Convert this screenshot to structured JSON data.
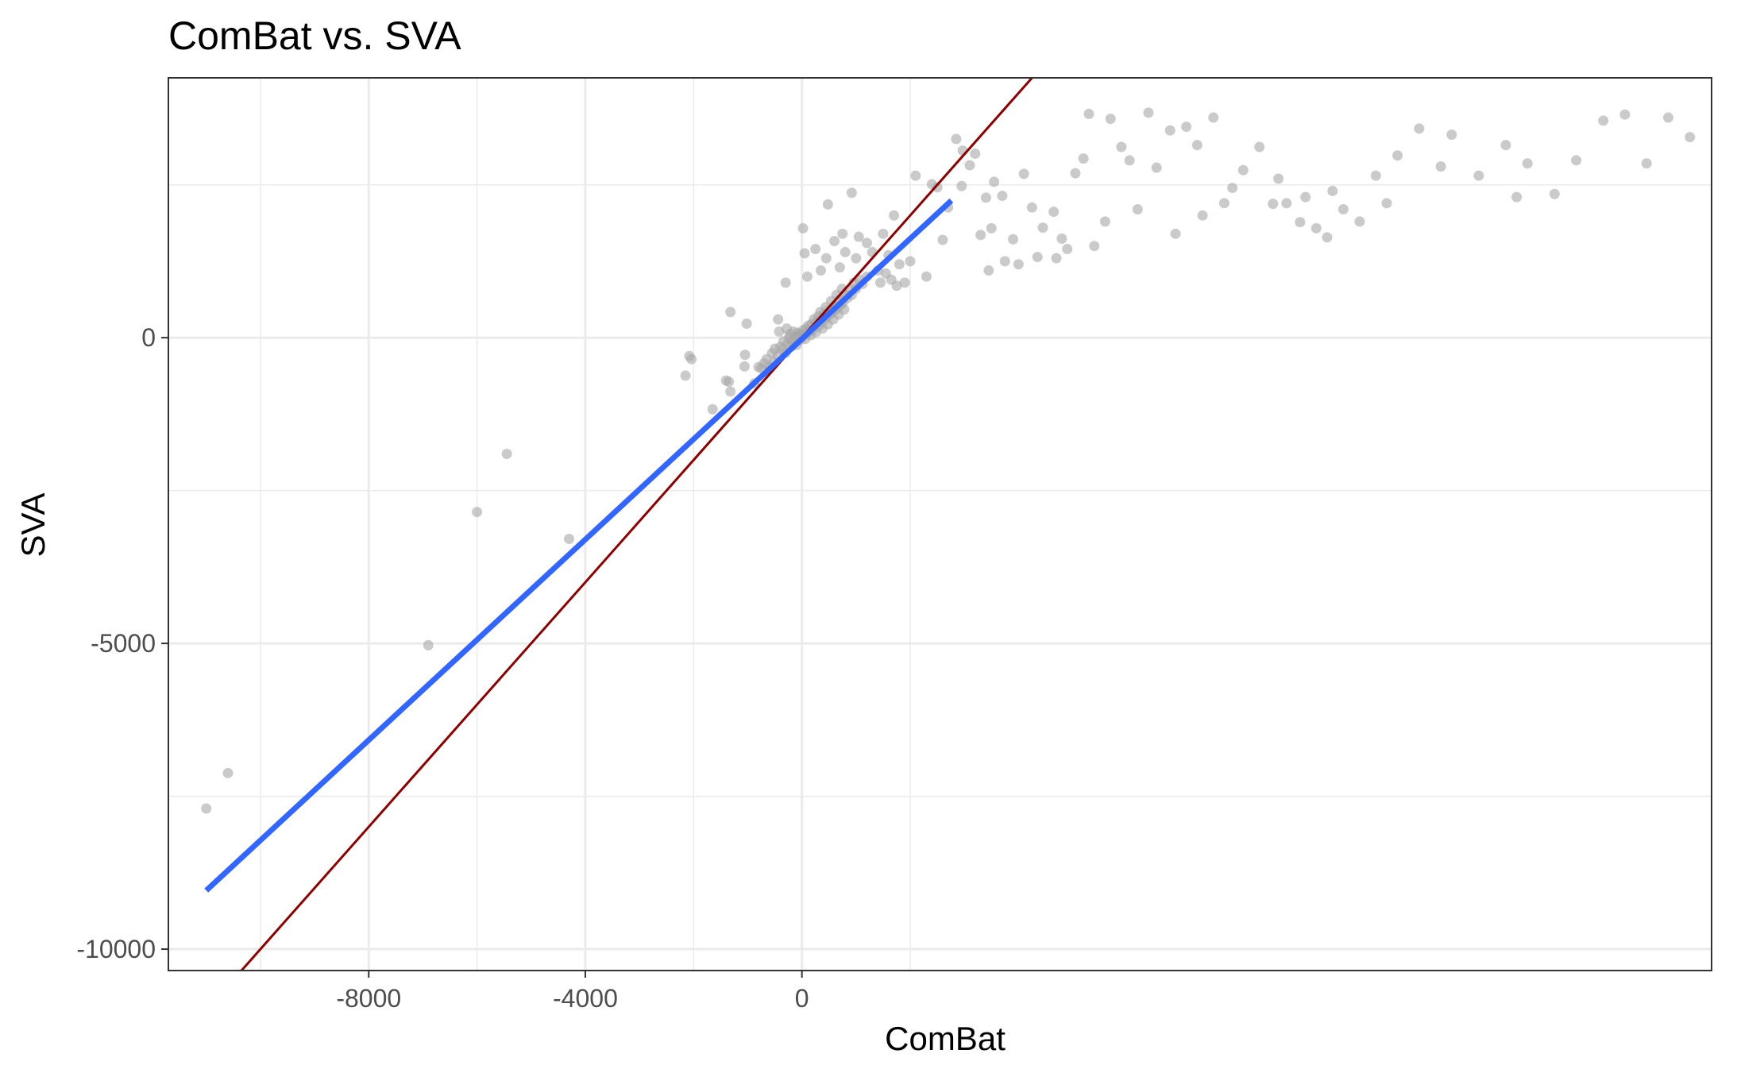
{
  "chart_data": {
    "type": "scatter",
    "title": "ComBat vs. SVA",
    "xlabel": "ComBat",
    "ylabel": "SVA",
    "xlim": [
      -11700,
      16800
    ],
    "ylim": [
      -10350,
      4250
    ],
    "x_ticks": [
      -8000,
      -4000,
      0
    ],
    "x_tick_labels": [
      "-8000",
      "-4000",
      "0"
    ],
    "y_ticks": [
      -10000,
      -5000,
      0
    ],
    "y_tick_labels": [
      "-10000",
      "-5000",
      "0"
    ],
    "x_minor_grid": [
      -10000,
      -6000,
      -2000,
      2000
    ],
    "y_minor_grid": [
      -7500,
      -2500,
      2500
    ],
    "grid": true,
    "reference_line": {
      "name": "identity",
      "slope": 1,
      "intercept": 0,
      "color": "#8b0000"
    },
    "fit_line": {
      "name": "linear-fit",
      "slope": 0.82,
      "intercept": -20,
      "x_range": [
        -11000,
        2760
      ],
      "color": "#3366ff"
    },
    "points": [
      [
        -11000,
        -7700
      ],
      [
        -10600,
        -7120
      ],
      [
        -6900,
        -5030
      ],
      [
        -6000,
        -2850
      ],
      [
        -5450,
        -1900
      ],
      [
        -4300,
        -3290
      ],
      [
        -2150,
        -620
      ],
      [
        -2080,
        -300
      ],
      [
        -2040,
        -350
      ],
      [
        -1650,
        -1170
      ],
      [
        -1400,
        -700
      ],
      [
        -1350,
        -720
      ],
      [
        -1320,
        -880
      ],
      [
        -1320,
        420
      ],
      [
        -1060,
        -470
      ],
      [
        -1050,
        -280
      ],
      [
        -1020,
        230
      ],
      [
        -880,
        -750
      ],
      [
        -800,
        -480
      ],
      [
        -750,
        -500
      ],
      [
        -700,
        -420
      ],
      [
        -650,
        -350
      ],
      [
        -600,
        -480
      ],
      [
        -550,
        -250
      ],
      [
        -520,
        -400
      ],
      [
        -500,
        -180
      ],
      [
        -450,
        -300
      ],
      [
        -440,
        300
      ],
      [
        -420,
        100
      ],
      [
        -400,
        -150
      ],
      [
        -360,
        -200
      ],
      [
        -340,
        -60
      ],
      [
        -300,
        -250
      ],
      [
        -280,
        150
      ],
      [
        -260,
        -100
      ],
      [
        -240,
        0
      ],
      [
        -220,
        60
      ],
      [
        -200,
        -150
      ],
      [
        -180,
        -50
      ],
      [
        -160,
        100
      ],
      [
        -140,
        -80
      ],
      [
        -120,
        20
      ],
      [
        -100,
        -120
      ],
      [
        -80,
        80
      ],
      [
        -60,
        30
      ],
      [
        -40,
        -40
      ],
      [
        -20,
        60
      ],
      [
        0,
        0
      ],
      [
        20,
        120
      ],
      [
        40,
        50
      ],
      [
        60,
        -20
      ],
      [
        80,
        150
      ],
      [
        100,
        80
      ],
      [
        120,
        200
      ],
      [
        140,
        100
      ],
      [
        160,
        40
      ],
      [
        180,
        220
      ],
      [
        200,
        130
      ],
      [
        220,
        300
      ],
      [
        240,
        180
      ],
      [
        260,
        90
      ],
      [
        280,
        260
      ],
      [
        300,
        350
      ],
      [
        320,
        200
      ],
      [
        340,
        420
      ],
      [
        360,
        260
      ],
      [
        380,
        150
      ],
      [
        400,
        380
      ],
      [
        420,
        300
      ],
      [
        440,
        500
      ],
      [
        460,
        340
      ],
      [
        480,
        220
      ],
      [
        500,
        450
      ],
      [
        520,
        380
      ],
      [
        540,
        600
      ],
      [
        560,
        420
      ],
      [
        580,
        300
      ],
      [
        600,
        520
      ],
      [
        620,
        460
      ],
      [
        640,
        700
      ],
      [
        660,
        500
      ],
      [
        680,
        380
      ],
      [
        700,
        620
      ],
      [
        720,
        540
      ],
      [
        740,
        800
      ],
      [
        760,
        580
      ],
      [
        780,
        460
      ],
      [
        800,
        700
      ],
      [
        840,
        650
      ],
      [
        880,
        780
      ],
      [
        920,
        700
      ],
      [
        960,
        900
      ],
      [
        1000,
        800
      ],
      [
        1060,
        950
      ],
      [
        1120,
        880
      ],
      [
        1200,
        1000
      ],
      [
        -300,
        900
      ],
      [
        20,
        1790
      ],
      [
        50,
        1380
      ],
      [
        100,
        1000
      ],
      [
        250,
        1450
      ],
      [
        350,
        1100
      ],
      [
        450,
        1300
      ],
      [
        480,
        2180
      ],
      [
        600,
        1580
      ],
      [
        700,
        1150
      ],
      [
        750,
        1700
      ],
      [
        800,
        1400
      ],
      [
        920,
        2370
      ],
      [
        1000,
        1300
      ],
      [
        1050,
        1650
      ],
      [
        1200,
        1550
      ],
      [
        1300,
        1400
      ],
      [
        1400,
        1100
      ],
      [
        1500,
        1700
      ],
      [
        1600,
        1350
      ],
      [
        1700,
        2000
      ],
      [
        1800,
        1200
      ],
      [
        2100,
        2650
      ],
      [
        2400,
        2510
      ],
      [
        2500,
        2460
      ],
      [
        2700,
        2130
      ],
      [
        2850,
        3250
      ],
      [
        2950,
        2480
      ],
      [
        2970,
        3060
      ],
      [
        3100,
        2820
      ],
      [
        3200,
        3010
      ],
      [
        3300,
        1680
      ],
      [
        3400,
        2290
      ],
      [
        3500,
        1790
      ],
      [
        3550,
        2550
      ],
      [
        3700,
        2320
      ],
      [
        3900,
        1610
      ],
      [
        4100,
        2680
      ],
      [
        4250,
        2130
      ],
      [
        4350,
        1320
      ],
      [
        4450,
        1800
      ],
      [
        4650,
        2060
      ],
      [
        4800,
        1620
      ],
      [
        5050,
        2690
      ],
      [
        5200,
        2930
      ],
      [
        5300,
        3660
      ],
      [
        5700,
        3580
      ],
      [
        5900,
        3120
      ],
      [
        6050,
        2900
      ],
      [
        6400,
        3680
      ],
      [
        6550,
        2780
      ],
      [
        6800,
        3390
      ],
      [
        7100,
        3450
      ],
      [
        7300,
        3150
      ],
      [
        7600,
        3600
      ],
      [
        7950,
        2450
      ],
      [
        8150,
        2740
      ],
      [
        8450,
        3120
      ],
      [
        8700,
        2190
      ],
      [
        8950,
        2200
      ],
      [
        9200,
        1890
      ],
      [
        9500,
        1790
      ],
      [
        9700,
        1640
      ],
      [
        10000,
        2100
      ],
      [
        10300,
        1900
      ],
      [
        10600,
        2650
      ],
      [
        11000,
        2980
      ],
      [
        11400,
        3420
      ],
      [
        12000,
        3320
      ],
      [
        12500,
        2650
      ],
      [
        13000,
        3150
      ],
      [
        13400,
        2850
      ],
      [
        13900,
        2350
      ],
      [
        14300,
        2900
      ],
      [
        14800,
        3550
      ],
      [
        15200,
        3650
      ],
      [
        15600,
        2850
      ],
      [
        16000,
        3600
      ],
      [
        16400,
        3280
      ],
      [
        13200,
        2300
      ],
      [
        11800,
        2800
      ],
      [
        10800,
        2200
      ],
      [
        9800,
        2400
      ],
      [
        9300,
        2300
      ],
      [
        8800,
        2600
      ],
      [
        7800,
        2200
      ],
      [
        7400,
        2000
      ],
      [
        6900,
        1700
      ],
      [
        6200,
        2100
      ],
      [
        5600,
        1900
      ],
      [
        5400,
        1500
      ],
      [
        4900,
        1450
      ],
      [
        4700,
        1300
      ],
      [
        4000,
        1200
      ],
      [
        3750,
        1250
      ],
      [
        3450,
        1100
      ],
      [
        2600,
        1600
      ],
      [
        2300,
        1000
      ],
      [
        2000,
        1250
      ],
      [
        1900,
        900
      ],
      [
        1750,
        850
      ],
      [
        1650,
        950
      ],
      [
        1550,
        1050
      ],
      [
        1450,
        900
      ]
    ]
  }
}
